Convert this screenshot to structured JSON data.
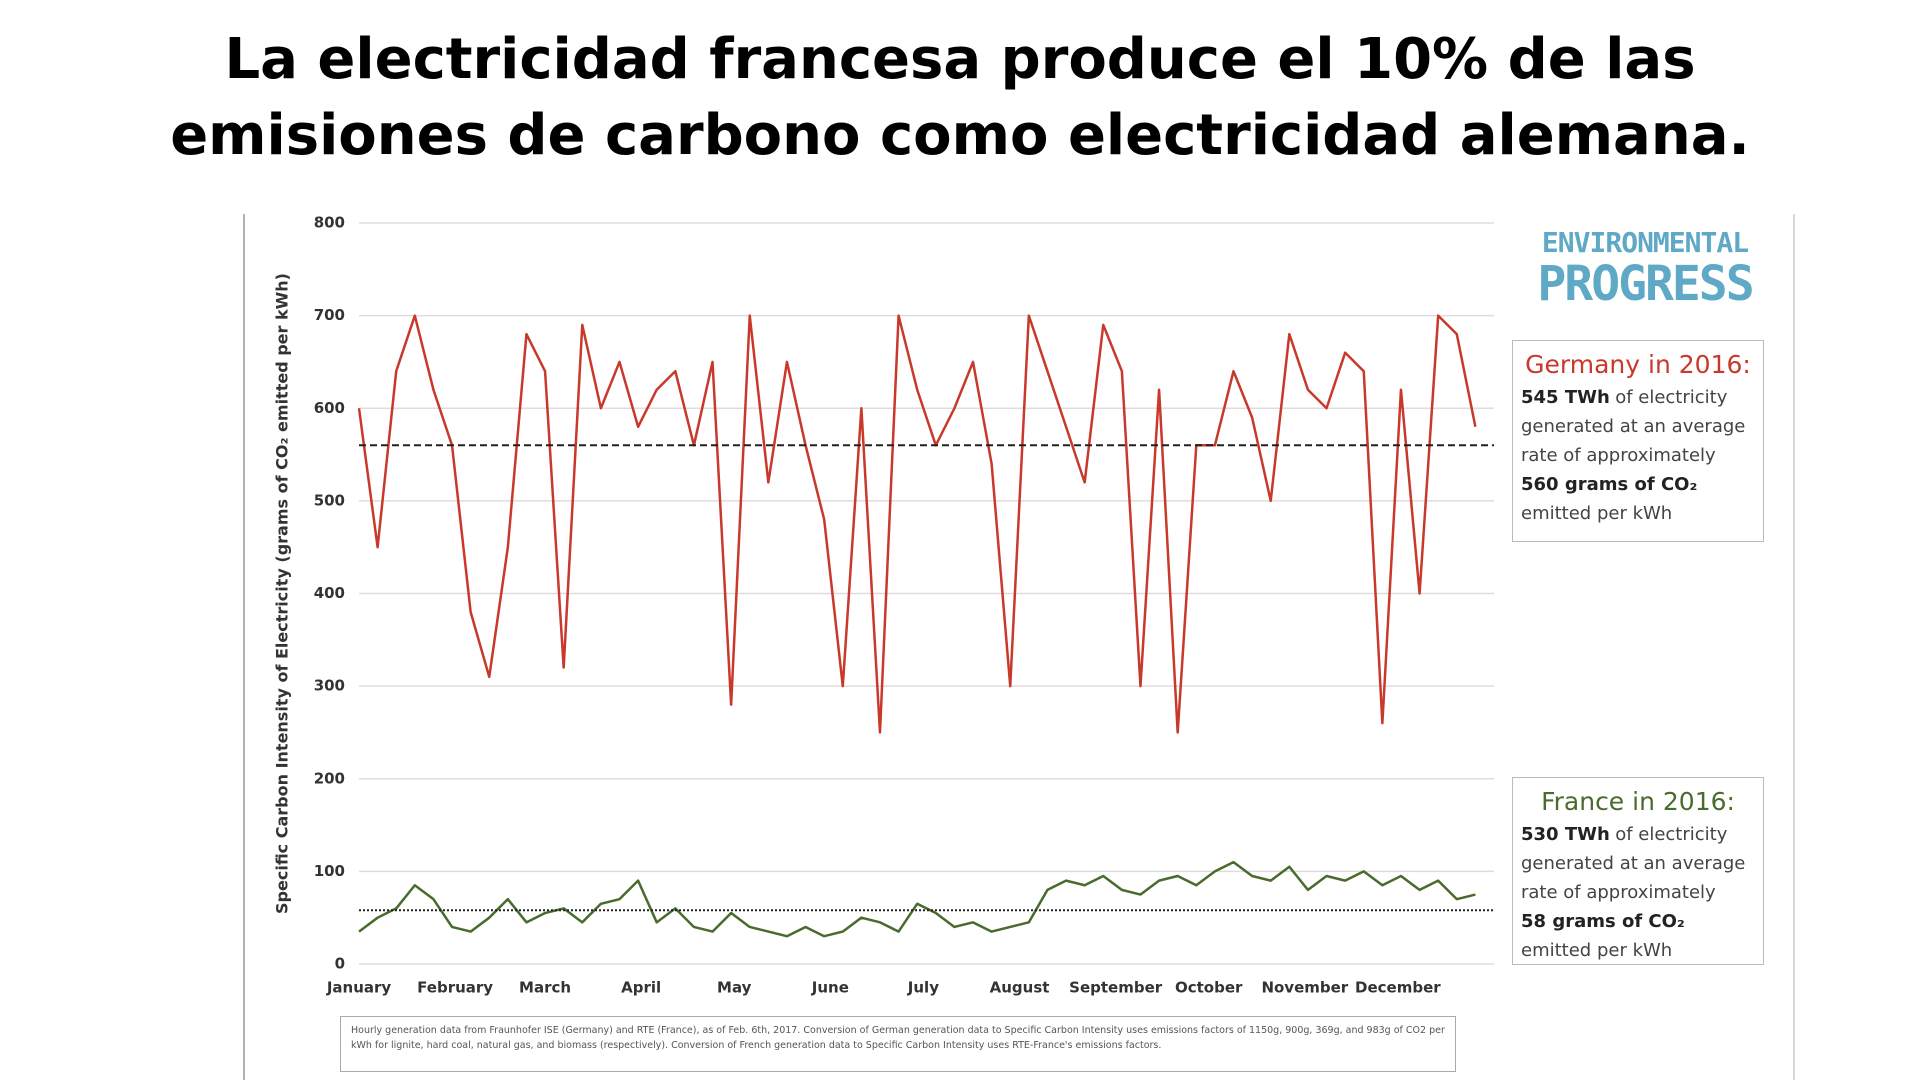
{
  "title": "La electricidad francesa produce el 10% de las emisiones de carbono como electricidad alemana.",
  "logo": [
    "ENVIRONMENTAL",
    "PROGRESS"
  ],
  "chart_data": {
    "type": "line",
    "ylabel": "Specific Carbon Intensity of Electricity (grams of CO₂ emitted per kWh)",
    "xlim": [
      0,
      366
    ],
    "xticks": [
      {
        "value": 0,
        "label": "January"
      },
      {
        "value": 31,
        "label": "February"
      },
      {
        "value": 60,
        "label": "March"
      },
      {
        "value": 91,
        "label": "April"
      },
      {
        "value": 121,
        "label": "May"
      },
      {
        "value": 152,
        "label": "June"
      },
      {
        "value": 182,
        "label": "July"
      },
      {
        "value": 213,
        "label": "August"
      },
      {
        "value": 244,
        "label": "September"
      },
      {
        "value": 274,
        "label": "October"
      },
      {
        "value": 305,
        "label": "November"
      },
      {
        "value": 335,
        "label": "December"
      }
    ],
    "ylim": [
      0,
      800
    ],
    "yticks": [
      0,
      100,
      200,
      300,
      400,
      500,
      600,
      700,
      800
    ],
    "grid": true,
    "x": [
      0,
      6,
      12,
      18,
      24,
      30,
      36,
      42,
      48,
      54,
      60,
      66,
      72,
      78,
      84,
      90,
      96,
      102,
      108,
      114,
      120,
      126,
      132,
      138,
      144,
      150,
      156,
      162,
      168,
      174,
      180,
      186,
      192,
      198,
      204,
      210,
      216,
      222,
      228,
      234,
      240,
      246,
      252,
      258,
      264,
      270,
      276,
      282,
      288,
      294,
      300,
      306,
      312,
      318,
      324,
      330,
      336,
      342,
      348,
      354,
      360
    ],
    "series": [
      {
        "name": "Germany",
        "color": "#c8392b",
        "average": 560,
        "average_style": "dashed",
        "values": [
          600,
          450,
          640,
          700,
          620,
          560,
          380,
          310,
          450,
          680,
          640,
          320,
          690,
          600,
          650,
          580,
          620,
          640,
          560,
          650,
          280,
          700,
          520,
          650,
          560,
          480,
          300,
          600,
          250,
          700,
          620,
          560,
          600,
          650,
          540,
          300,
          700,
          640,
          580,
          520,
          690,
          640,
          300,
          620,
          250,
          560,
          560,
          640,
          590,
          500,
          680,
          620,
          600,
          660,
          640,
          260,
          620,
          400,
          700,
          680,
          580
        ]
      },
      {
        "name": "France",
        "color": "#4a6b2e",
        "average": 58,
        "average_style": "dotted",
        "values": [
          35,
          50,
          60,
          85,
          70,
          40,
          35,
          50,
          70,
          45,
          55,
          60,
          45,
          65,
          70,
          90,
          45,
          60,
          40,
          35,
          55,
          40,
          35,
          30,
          40,
          30,
          35,
          50,
          45,
          35,
          65,
          55,
          40,
          45,
          35,
          40,
          45,
          80,
          90,
          85,
          95,
          80,
          75,
          90,
          95,
          85,
          100,
          110,
          95,
          90,
          105,
          80,
          95,
          90,
          100,
          85,
          95,
          80,
          90,
          70,
          75
        ]
      }
    ],
    "annotations": [
      {
        "title": "Germany in 2016:",
        "lines": [
          [
            {
              "bold": true,
              "text": "545 TWh"
            },
            {
              "text": "of electricity"
            }
          ],
          [
            {
              "text": "generated at an average"
            }
          ],
          [
            {
              "text": "rate of approximately"
            }
          ],
          [
            {
              "bold": true,
              "text": "560 grams of CO₂"
            }
          ],
          [
            {
              "text": "emitted per kWh"
            }
          ]
        ]
      },
      {
        "title": "France in 2016:",
        "lines": [
          [
            {
              "bold": true,
              "text": "530 TWh"
            },
            {
              "text": "of electricity"
            }
          ],
          [
            {
              "text": "generated at an average"
            }
          ],
          [
            {
              "text": "rate of approximately"
            }
          ],
          [
            {
              "bold": true,
              "text": "58 grams of CO₂"
            }
          ],
          [
            {
              "text": "emitted per kWh"
            }
          ]
        ]
      }
    ],
    "note": "Hourly generation data from Fraunhofer ISE (Germany) and RTE (France), as of Feb. 6th, 2017. Conversion of German generation data to Specific Carbon Intensity uses emissions factors of 1150g, 900g, 369g, and 983g of CO2 per kWh for lignite, hard coal, natural gas, and biomass (respectively). Conversion of French generation data to Specific Carbon Intensity uses RTE-France's emissions factors."
  }
}
